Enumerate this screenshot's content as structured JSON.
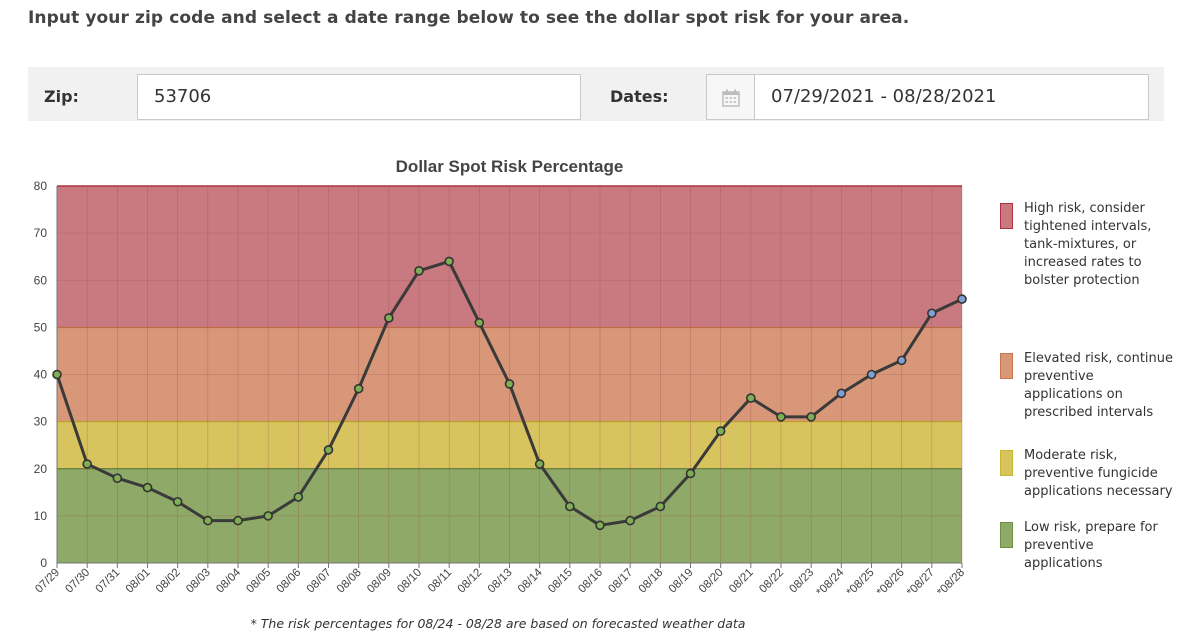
{
  "intro": "Input your zip code and select a date range below to see the dollar spot risk for your area.",
  "form": {
    "zip_label": "Zip:",
    "zip_value": "53706",
    "dates_label": "Dates:",
    "dates_value": "07/29/2021 - 08/28/2021"
  },
  "icons": {
    "calendar": "calendar-icon"
  },
  "chart_data": {
    "type": "line",
    "title": "Dollar Spot Risk Percentage",
    "xlabel": "",
    "ylabel": "",
    "ylim": [
      0,
      80
    ],
    "yticks": [
      0,
      10,
      20,
      30,
      40,
      50,
      60,
      70,
      80
    ],
    "grid": true,
    "categories": [
      "07/29",
      "07/30",
      "07/31",
      "08/01",
      "08/02",
      "08/03",
      "08/04",
      "08/05",
      "08/06",
      "08/07",
      "08/08",
      "08/09",
      "08/10",
      "08/11",
      "08/12",
      "08/13",
      "08/14",
      "08/15",
      "08/16",
      "08/17",
      "08/18",
      "08/19",
      "08/20",
      "08/21",
      "08/22",
      "08/23",
      "*08/24",
      "*08/25",
      "*08/26",
      "*08/27",
      "*08/28"
    ],
    "series": [
      {
        "values": [
          40,
          21,
          18,
          16,
          13,
          9,
          9,
          10,
          14,
          24,
          37,
          52,
          62,
          64,
          51,
          38,
          21,
          12,
          8,
          9,
          12,
          19,
          28,
          35,
          31,
          31,
          36,
          40,
          43,
          53,
          56
        ]
      }
    ],
    "forecast_start_index": 26,
    "bands": [
      {
        "from": 50,
        "to": 80,
        "color": "#c97a80",
        "border": "#b03040",
        "legend": "High risk, consider tightened intervals, tank-mixtures, or increased rates to bolster protection"
      },
      {
        "from": 30,
        "to": 50,
        "color": "#d9977a",
        "border": "#c8764e",
        "legend": "Elevated risk, continue preventive applications on prescribed intervals"
      },
      {
        "from": 20,
        "to": 30,
        "color": "#d8c45e",
        "border": "#c9b530",
        "legend": "Moderate risk, preventive fungicide applications necessary"
      },
      {
        "from": 0,
        "to": 20,
        "color": "#8faa68",
        "border": "#6a9040",
        "legend": "Low risk, prepare for preventive applications"
      }
    ],
    "colors": {
      "line": "#3a3a3a",
      "point_observed": "#7fae55",
      "point_forecast": "#7d9fd4",
      "grid": "#9a4a4a"
    },
    "footnote": "* The risk percentages for 08/24 - 08/28 are based on forecasted weather data"
  }
}
